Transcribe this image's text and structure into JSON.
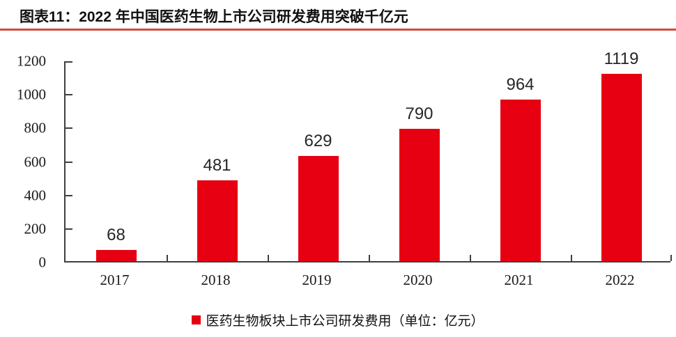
{
  "header": {
    "title": "图表11：2022 年中国医药生物上市公司研发费用突破千亿元"
  },
  "legend": {
    "label": "医药生物板块上市公司研发费用（单位：亿元）"
  },
  "colors": {
    "bar": "#e60012",
    "divider": "#d14a42",
    "axis": "#3f3f3f",
    "text": "#1a1a1a"
  },
  "chart_data": {
    "type": "bar",
    "categories": [
      "2017",
      "2018",
      "2019",
      "2020",
      "2021",
      "2022"
    ],
    "values": [
      68,
      481,
      629,
      790,
      964,
      1119
    ],
    "series_name": "医药生物板块上市公司研发费用（单位：亿元）",
    "title": "图表11：2022 年中国医药生物上市公司研发费用突破千亿元",
    "xlabel": "",
    "ylabel": "",
    "ylim": [
      0,
      1200
    ],
    "ytick_step": 200,
    "data_labels": true,
    "grid": false,
    "legend_position": "bottom",
    "bar_color": "#e60012"
  }
}
